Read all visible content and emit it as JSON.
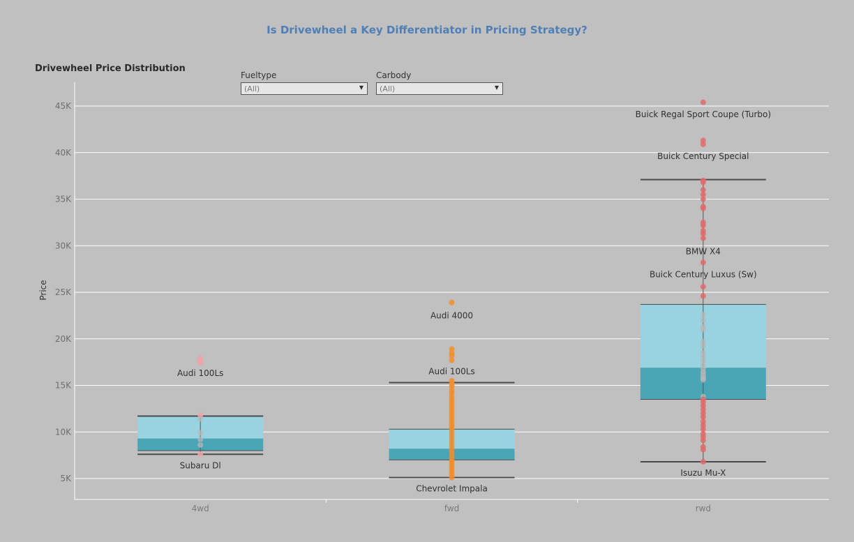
{
  "title": "Is Drivewheel a Key Differentiator in Pricing Strategy?",
  "subtitle": "Drivewheel Price Distribution",
  "filters": [
    {
      "label": "Fueltype",
      "value": "(All)"
    },
    {
      "label": "Carbody",
      "value": "(All)"
    }
  ],
  "colors": {
    "title": "#4f7fb4",
    "box_upper": "#98d3df",
    "box_lower": "#4aa6b6",
    "points_4wd": "#f0a3a8",
    "points_fwd": "#f28e2b",
    "points_rwd": "#e06b6b",
    "grid": "#ffffff"
  },
  "chart_data": {
    "type": "box",
    "ylabel": "Price",
    "xlabel": "",
    "ylim": [
      2500,
      48000
    ],
    "yticks": [
      5000,
      10000,
      15000,
      20000,
      25000,
      30000,
      35000,
      40000,
      45000
    ],
    "ytick_labels": [
      "5K",
      "10K",
      "15K",
      "20K",
      "25K",
      "30K",
      "35K",
      "40K",
      "45K"
    ],
    "categories": [
      "4wd",
      "fwd",
      "rwd"
    ],
    "boxes": [
      {
        "category": "4wd",
        "whisker_low": 7600,
        "q1": 8000,
        "median": 9300,
        "q3": 11700,
        "whisker_high": 11700
      },
      {
        "category": "fwd",
        "whisker_low": 5100,
        "q1": 7000,
        "median": 8200,
        "q3": 10300,
        "whisker_high": 15300
      },
      {
        "category": "rwd",
        "whisker_low": 6800,
        "q1": 13500,
        "median": 16900,
        "q3": 23700,
        "whisker_high": 37100
      }
    ],
    "points": [
      {
        "category": "4wd",
        "values": [
          17900,
          17600,
          17400,
          11800,
          11400,
          9900,
          9200,
          8600,
          7600
        ]
      },
      {
        "category": "fwd",
        "values": [
          23900,
          18900,
          18500,
          18200,
          17700,
          15500,
          15200,
          14900,
          14500,
          14200,
          13800,
          13500,
          13200,
          12900,
          12600,
          12300,
          12000,
          11700,
          11400,
          11100,
          10800,
          10500,
          10200,
          9900,
          9600,
          9300,
          9000,
          8700,
          8400,
          8100,
          7800,
          7500,
          7200,
          6900,
          6600,
          6300,
          6000,
          5700,
          5400,
          5100
        ]
      },
      {
        "category": "rwd",
        "values": [
          45400,
          41300,
          40900,
          37000,
          36800,
          36000,
          35500,
          35000,
          34200,
          34000,
          32500,
          32200,
          31600,
          31300,
          30800,
          28200,
          25600,
          24600,
          22600,
          22000,
          21300,
          21000,
          19700,
          19200,
          18500,
          18100,
          17700,
          17200,
          16800,
          16400,
          16100,
          15800,
          15600,
          13800,
          13500,
          13200,
          12800,
          12400,
          12000,
          11600,
          11100,
          10700,
          10300,
          9800,
          9500,
          9100,
          8400,
          8100,
          6800
        ]
      }
    ],
    "annotations": [
      {
        "category": "4wd",
        "text": "Audi 100Ls",
        "y": 16300
      },
      {
        "category": "4wd",
        "text": "Subaru Dl",
        "y": 6400
      },
      {
        "category": "fwd",
        "text": "Audi 4000",
        "y": 22500
      },
      {
        "category": "fwd",
        "text": "Audi 100Ls",
        "y": 16500
      },
      {
        "category": "fwd",
        "text": "Chevrolet Impala",
        "y": 3900
      },
      {
        "category": "rwd",
        "text": "Buick Regal Sport Coupe (Turbo)",
        "y": 44100
      },
      {
        "category": "rwd",
        "text": "Buick Century Special",
        "y": 39600
      },
      {
        "category": "rwd",
        "text": "BMW X4",
        "y": 29400
      },
      {
        "category": "rwd",
        "text": "Buick Century Luxus (Sw)",
        "y": 26900
      },
      {
        "category": "rwd",
        "text": "Isuzu Mu-X",
        "y": 5600
      }
    ],
    "grid": true,
    "legend": "none"
  }
}
